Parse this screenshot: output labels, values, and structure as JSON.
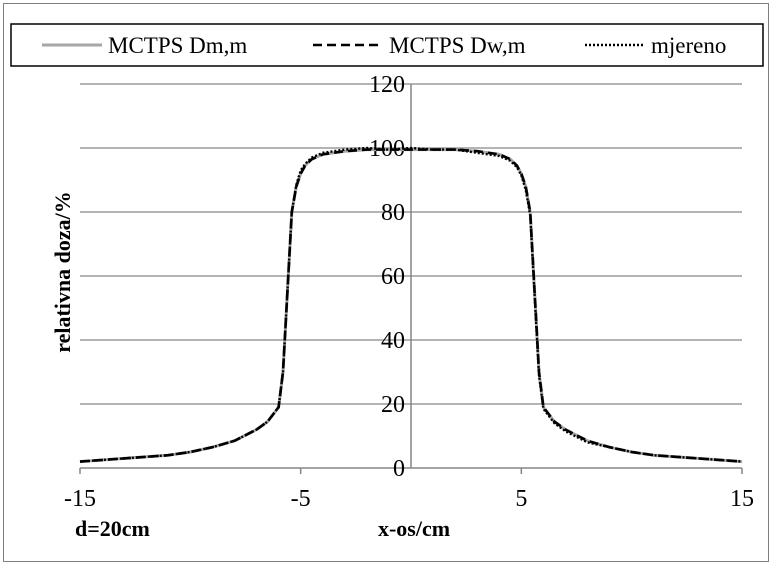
{
  "chart_data": {
    "type": "line",
    "title": "",
    "xlabel": "x-os/cm",
    "ylabel": "relativna doza/%",
    "annotation": "d=20cm",
    "xlim": [
      -15,
      15
    ],
    "ylim": [
      0,
      120
    ],
    "xticks": [
      -15,
      -5,
      5,
      15
    ],
    "yticks": [
      0,
      20,
      40,
      60,
      80,
      100,
      120
    ],
    "grid": "horizontal",
    "legend_position": "top",
    "series": [
      {
        "name": "MCTPS Dm,m",
        "style": "solid",
        "color": "#a6a6a6",
        "x": [
          -15,
          -13,
          -11,
          -10,
          -9,
          -8,
          -7,
          -6.5,
          -6,
          -5.8,
          -5.6,
          -5.4,
          -5.2,
          -5,
          -4.8,
          -4.5,
          -4,
          -3,
          -2,
          -1,
          0,
          1,
          2,
          3,
          4,
          4.5,
          4.8,
          5,
          5.2,
          5.4,
          5.6,
          5.8,
          6,
          6.5,
          7,
          8,
          9,
          10,
          11,
          13,
          15
        ],
        "y": [
          2,
          3,
          4,
          5,
          6.5,
          8.5,
          12,
          14.5,
          19,
          30,
          55,
          80,
          88,
          92,
          94.5,
          96.5,
          98,
          99,
          99.5,
          99.5,
          99.5,
          99.5,
          99.5,
          99,
          98,
          96.5,
          94.5,
          92,
          88,
          80,
          55,
          30,
          19,
          14.5,
          12,
          8.5,
          6.5,
          5,
          4,
          3,
          2
        ]
      },
      {
        "name": "MCTPS Dw,m",
        "style": "dashed",
        "color": "#000000",
        "x": [
          -15,
          -13,
          -11,
          -10,
          -9,
          -8,
          -7,
          -6.5,
          -6,
          -5.8,
          -5.6,
          -5.4,
          -5.2,
          -5,
          -4.8,
          -4.5,
          -4,
          -3,
          -2,
          -1,
          0,
          1,
          2,
          3,
          4,
          4.5,
          4.8,
          5,
          5.2,
          5.4,
          5.6,
          5.8,
          6,
          6.5,
          7,
          8,
          9,
          10,
          11,
          13,
          15
        ],
        "y": [
          2,
          3,
          4,
          5,
          6.5,
          8.5,
          12,
          14.5,
          19,
          30,
          55,
          80,
          88,
          92,
          94.5,
          96.5,
          98,
          99,
          99.5,
          99.5,
          99.5,
          99.5,
          99.5,
          99,
          98,
          96.5,
          94.5,
          92,
          88,
          80,
          55,
          30,
          19,
          14.5,
          12,
          8.5,
          6.5,
          5,
          4,
          3,
          2
        ]
      },
      {
        "name": "mjereno",
        "style": "dotted",
        "color": "#000000",
        "x": [
          -15,
          -13,
          -11,
          -10,
          -9,
          -8,
          -7,
          -6.5,
          -6,
          -5.8,
          -5.6,
          -5.4,
          -5.2,
          -5,
          -4.8,
          -4.5,
          -4,
          -3,
          -2,
          -1,
          0,
          1,
          2,
          3,
          4,
          4.5,
          4.8,
          5,
          5.2,
          5.4,
          5.6,
          5.8,
          6,
          6.5,
          7,
          8,
          9,
          10,
          11,
          13,
          15
        ],
        "y": [
          2,
          3,
          4,
          5,
          6.5,
          8.5,
          12,
          14.5,
          19,
          30,
          55,
          80,
          88.5,
          93,
          95,
          97,
          98.5,
          99.5,
          100,
          99.5,
          100,
          99.5,
          99.5,
          98.5,
          97.5,
          96,
          94,
          91.5,
          87,
          79,
          54,
          29,
          18.5,
          14,
          11.5,
          8,
          6.5,
          5,
          4,
          3,
          2
        ]
      }
    ]
  }
}
